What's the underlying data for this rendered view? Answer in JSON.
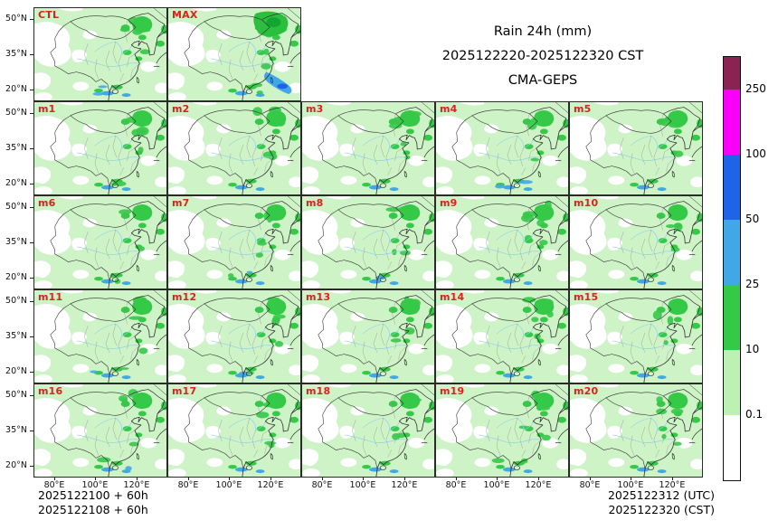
{
  "title": {
    "line1": "Rain 24h (mm)",
    "line2": "2025122220-2025122320 CST",
    "line3": "CMA-GEPS"
  },
  "axes": {
    "y_ticks": [
      "50°N",
      "35°N",
      "20°N"
    ],
    "x_ticks": [
      "80°E",
      "100°E",
      "120°E"
    ]
  },
  "colorbar": {
    "labels": [
      "250",
      "100",
      "50",
      "25",
      "10",
      "0.1"
    ]
  },
  "footer": {
    "init1": "2025122100 + 60h",
    "init2": "2025122108 + 60h",
    "valid_utc": "2025122312 (UTC)",
    "valid_cst": "2025122320 (CST)"
  },
  "chart_data": {
    "type": "heatmap",
    "subtype": "ensemble-precipitation-map-grid",
    "title": "Rain 24h (mm)",
    "valid_period": "2025122220-2025122320 CST",
    "model": "CMA-GEPS",
    "panels": [
      "CTL",
      "MAX",
      "m1",
      "m2",
      "m3",
      "m4",
      "m5",
      "m6",
      "m7",
      "m8",
      "m9",
      "m10",
      "m11",
      "m12",
      "m13",
      "m14",
      "m15",
      "m16",
      "m17",
      "m18",
      "m19",
      "m20"
    ],
    "grid": {
      "rows": 5,
      "cols": 5,
      "first_row_panels": 2
    },
    "colorbar": {
      "orientation": "vertical",
      "position": "right",
      "levels_mm": [
        0.1,
        10,
        25,
        50,
        100,
        250
      ],
      "colors": [
        "#ffffff",
        "#bdf0b3",
        "#35c948",
        "#41a8e8",
        "#1f63e8",
        "#fa00fa",
        "#8a2252"
      ]
    },
    "x_axis": {
      "label": "longitude",
      "ticks": [
        "80°E",
        "100°E",
        "120°E"
      ]
    },
    "y_axis": {
      "label": "latitude",
      "ticks": [
        "20°N",
        "35°N",
        "50°N"
      ]
    },
    "map_region": "East Asia / China",
    "init_times": [
      "2025122100 + 60h",
      "2025122108 + 60h"
    ],
    "valid_times": [
      "2025122312 (UTC)",
      "2025122320 (CST)"
    ]
  }
}
